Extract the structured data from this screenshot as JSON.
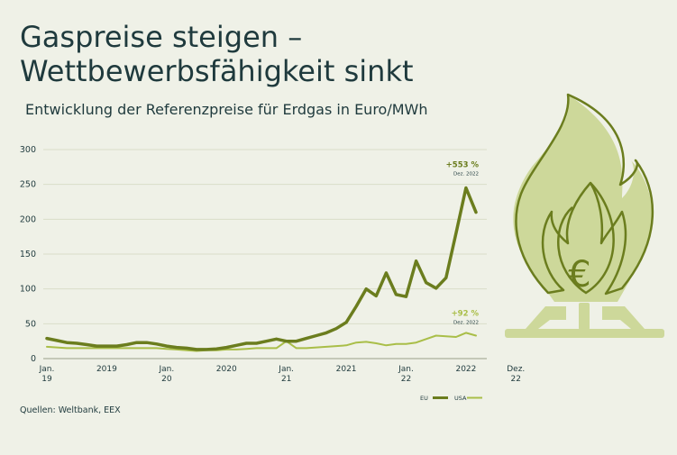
{
  "header": {
    "title_line1": "Gaspreise steigen –",
    "title_line2": "Wettbewerbsfähigkeit sinkt",
    "subtitle": "Entwicklung der Referenzpreise für Erdgas in Euro/MWh"
  },
  "footer": {
    "source": "Quellen: Weltbank, EEX"
  },
  "colors": {
    "eu": "#6b7d1e",
    "usa": "#a9be48",
    "icon_fill": "#cdd89a",
    "icon_stroke": "#6b7d1e",
    "text": "#1f3a3d",
    "grid": "#d9ddc9"
  },
  "icon": {
    "name": "gas-flame-euro-icon",
    "symbol": "€"
  },
  "chart_data": {
    "type": "line",
    "ylim": [
      0,
      300
    ],
    "yticks": [
      0,
      50,
      100,
      150,
      200,
      250,
      300
    ],
    "x_tick_labels": [
      {
        "month": 0,
        "label": [
          "Jan.",
          "19"
        ]
      },
      {
        "month": 6,
        "label": [
          "2019"
        ]
      },
      {
        "month": 12,
        "label": [
          "Jan.",
          "20"
        ]
      },
      {
        "month": 18,
        "label": [
          "2020"
        ]
      },
      {
        "month": 24,
        "label": [
          "Jan.",
          "21"
        ]
      },
      {
        "month": 30,
        "label": [
          "2021"
        ]
      },
      {
        "month": 36,
        "label": [
          "Jan.",
          "22"
        ]
      },
      {
        "month": 42,
        "label": [
          "2022"
        ]
      },
      {
        "month": 47,
        "label": [
          "Dez.",
          "22"
        ]
      }
    ],
    "series": [
      {
        "name": "EU",
        "color": "#6b7d1e",
        "values": [
          29,
          26,
          23,
          22,
          20,
          18,
          18,
          18,
          20,
          23,
          23,
          21,
          18,
          16,
          15,
          13,
          13,
          14,
          16,
          19,
          22,
          22,
          25,
          28,
          25,
          25,
          29,
          33,
          37,
          43,
          52,
          75,
          100,
          90,
          123,
          92,
          89,
          140,
          109,
          101,
          116,
          180,
          245,
          210
        ],
        "annotation": {
          "value": "+553 %",
          "note": "Dez. 2022"
        }
      },
      {
        "name": "USA",
        "color": "#a9be48",
        "values": [
          17,
          16,
          15,
          15,
          15,
          15,
          15,
          15,
          15,
          15,
          15,
          15,
          14,
          13,
          12,
          11,
          12,
          12,
          13,
          13,
          14,
          15,
          15,
          15,
          25,
          15,
          15,
          16,
          17,
          18,
          19,
          23,
          24,
          22,
          19,
          21,
          21,
          23,
          28,
          33,
          32,
          31,
          37,
          33
        ],
        "annotation": {
          "value": "+92 %",
          "note": "Dez. 2022"
        }
      }
    ],
    "legend": {
      "position": "bottom-right",
      "items": [
        "EU",
        "USA"
      ]
    },
    "grid": true
  }
}
